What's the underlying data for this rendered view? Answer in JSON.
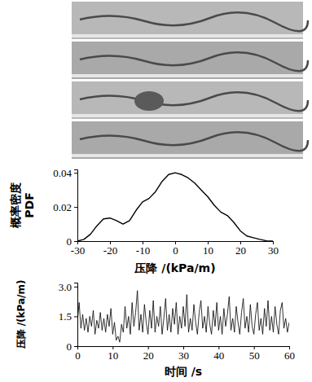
{
  "chart_data": [
    {
      "type": "line",
      "ylabel": [
        "概率密度",
        "PDF"
      ],
      "xlabel": "压降 /(kPa/m)",
      "x": [
        -30,
        -28,
        -26,
        -24,
        -22,
        -20,
        -18,
        -16,
        -14,
        -12,
        -10,
        -8,
        -6,
        -4,
        -2,
        0,
        2,
        4,
        6,
        8,
        10,
        12,
        14,
        16,
        18,
        20,
        22,
        24,
        26,
        28,
        30
      ],
      "values": [
        0,
        0.001,
        0.004,
        0.009,
        0.013,
        0.0135,
        0.012,
        0.01,
        0.012,
        0.018,
        0.023,
        0.025,
        0.029,
        0.035,
        0.039,
        0.04,
        0.039,
        0.037,
        0.034,
        0.03,
        0.026,
        0.021,
        0.017,
        0.015,
        0.011,
        0.006,
        0.003,
        0.002,
        0.001,
        0.0002,
        0
      ],
      "color": "#000000",
      "xlim": [
        -30,
        30
      ],
      "xticks": [
        -30,
        -20,
        -10,
        0,
        10,
        20,
        30
      ],
      "ylim": [
        0,
        0.042
      ],
      "yticks": [
        0,
        0.02,
        0.04
      ]
    },
    {
      "type": "line",
      "ylabel": "压降 /(kPa/m)",
      "xlabel": "时间 /s",
      "x": [
        0,
        0.5,
        1,
        1.5,
        2,
        2.5,
        3,
        3.5,
        4,
        4.5,
        5,
        5.5,
        6,
        6.5,
        7,
        7.5,
        8,
        8.5,
        9,
        9.5,
        10,
        10.5,
        11,
        11.5,
        12,
        12.5,
        13,
        13.5,
        14,
        14.5,
        15,
        15.5,
        16,
        16.5,
        17,
        17.5,
        18,
        18.5,
        19,
        19.5,
        20,
        20.5,
        21,
        21.5,
        22,
        22.5,
        23,
        23.5,
        24,
        24.5,
        25,
        25.5,
        26,
        26.5,
        27,
        27.5,
        28,
        28.5,
        29,
        29.5,
        30,
        30.5,
        31,
        31.5,
        32,
        32.5,
        33,
        33.5,
        34,
        34.5,
        35,
        35.5,
        36,
        36.5,
        37,
        37.5,
        38,
        38.5,
        39,
        39.5,
        40,
        40.5,
        41,
        41.5,
        42,
        42.5,
        43,
        43.5,
        44,
        44.5,
        45,
        45.5,
        46,
        46.5,
        47,
        47.5,
        48,
        48.5,
        49,
        49.5,
        50,
        50.5,
        51,
        51.5,
        52,
        52.5,
        53,
        53.5,
        54,
        54.5,
        55,
        55.5,
        56,
        56.5,
        57,
        57.5,
        58,
        58.5,
        59,
        59.5,
        60
      ],
      "values": [
        1.2,
        2.2,
        0.9,
        1.6,
        0.8,
        1.4,
        0.7,
        1.5,
        1.0,
        1.8,
        0.6,
        1.3,
        0.9,
        1.7,
        0.8,
        1.4,
        0.7,
        1.6,
        1.0,
        1.9,
        0.6,
        1.2,
        0.3,
        0.5,
        0.2,
        1.1,
        0.7,
        2.0,
        0.9,
        1.5,
        0.6,
        2.2,
        1.0,
        1.7,
        2.8,
        0.8,
        1.6,
        0.7,
        2.1,
        1.2,
        0.6,
        1.8,
        0.9,
        2.3,
        0.7,
        1.5,
        1.0,
        2.0,
        0.6,
        1.4,
        2.4,
        0.8,
        1.6,
        0.7,
        1.9,
        1.1,
        2.2,
        0.6,
        1.5,
        0.9,
        2.0,
        1.0,
        2.6,
        0.7,
        1.4,
        0.8,
        2.1,
        1.2,
        0.6,
        1.7,
        2.3,
        0.9,
        1.5,
        0.7,
        2.0,
        1.1,
        0.6,
        1.8,
        1.0,
        2.2,
        0.8,
        1.5,
        0.6,
        1.9,
        1.0,
        1.6,
        2.5,
        0.8,
        1.4,
        0.7,
        2.0,
        1.2,
        0.6,
        1.7,
        2.4,
        0.9,
        1.5,
        0.7,
        2.1,
        1.0,
        0.6,
        1.6,
        2.2,
        0.8,
        1.4,
        0.6,
        1.9,
        1.0,
        2.3,
        0.8,
        1.5,
        0.7,
        2.0,
        1.1,
        0.6,
        1.8,
        2.2,
        0.9,
        1.4,
        0.7,
        1.2
      ],
      "color": "#000000",
      "xlim": [
        0,
        60
      ],
      "xticks": [
        0,
        10,
        20,
        30,
        40,
        50,
        60
      ],
      "ylim": [
        0,
        3.2
      ],
      "yticks": [
        0,
        {
          "value": 1.5,
          "label": "1.5"
        },
        {
          "value": 3,
          "label": "3.0"
        }
      ]
    }
  ]
}
